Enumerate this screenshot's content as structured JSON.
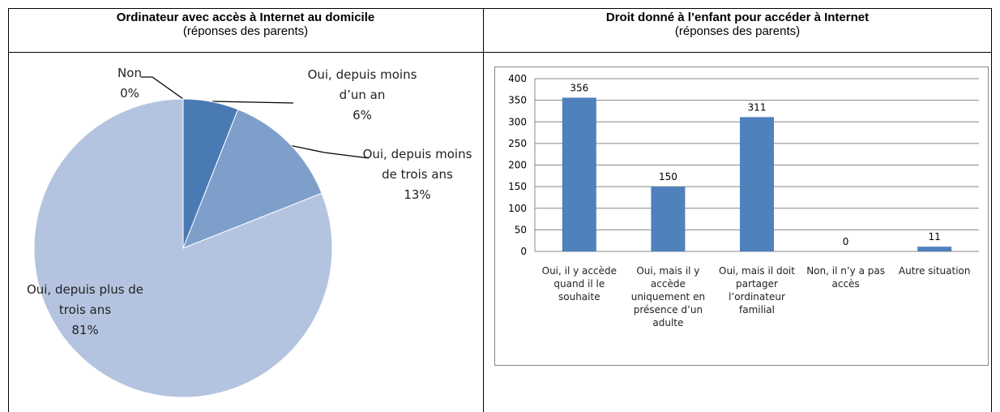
{
  "chart_data": [
    {
      "type": "pie",
      "title": "Ordinateur avec accès à Internet au domicile",
      "subtitle": "(réponses des parents)",
      "categories": [
        "Non",
        "Oui, depuis moins d’un an",
        "Oui, depuis moins de trois ans",
        "Oui, depuis plus de trois ans"
      ],
      "values": [
        0,
        6,
        13,
        81
      ],
      "value_labels": [
        "0%",
        "6%",
        "13%",
        "81%"
      ],
      "colors": [
        "#4a7ab4",
        "#4a7ab4",
        "#7f9fcb",
        "#b4c4e0"
      ]
    },
    {
      "type": "bar",
      "title": "Droit donné à l’enfant pour accéder à Internet",
      "subtitle": "(réponses des parents)",
      "categories": [
        "Oui, il y accède quand il le souhaite",
        "Oui, mais il y accède uniquement en présence d’un adulte",
        "Oui, mais il doit partager l’ordinateur familial",
        "Non, il n’y a pas accès",
        "Autre situation"
      ],
      "values": [
        356,
        150,
        311,
        0,
        11
      ],
      "color": "#4f81bd",
      "ylim": [
        0,
        400
      ],
      "yticks": [
        0,
        50,
        100,
        150,
        200,
        250,
        300,
        350,
        400
      ],
      "grid": true
    }
  ]
}
